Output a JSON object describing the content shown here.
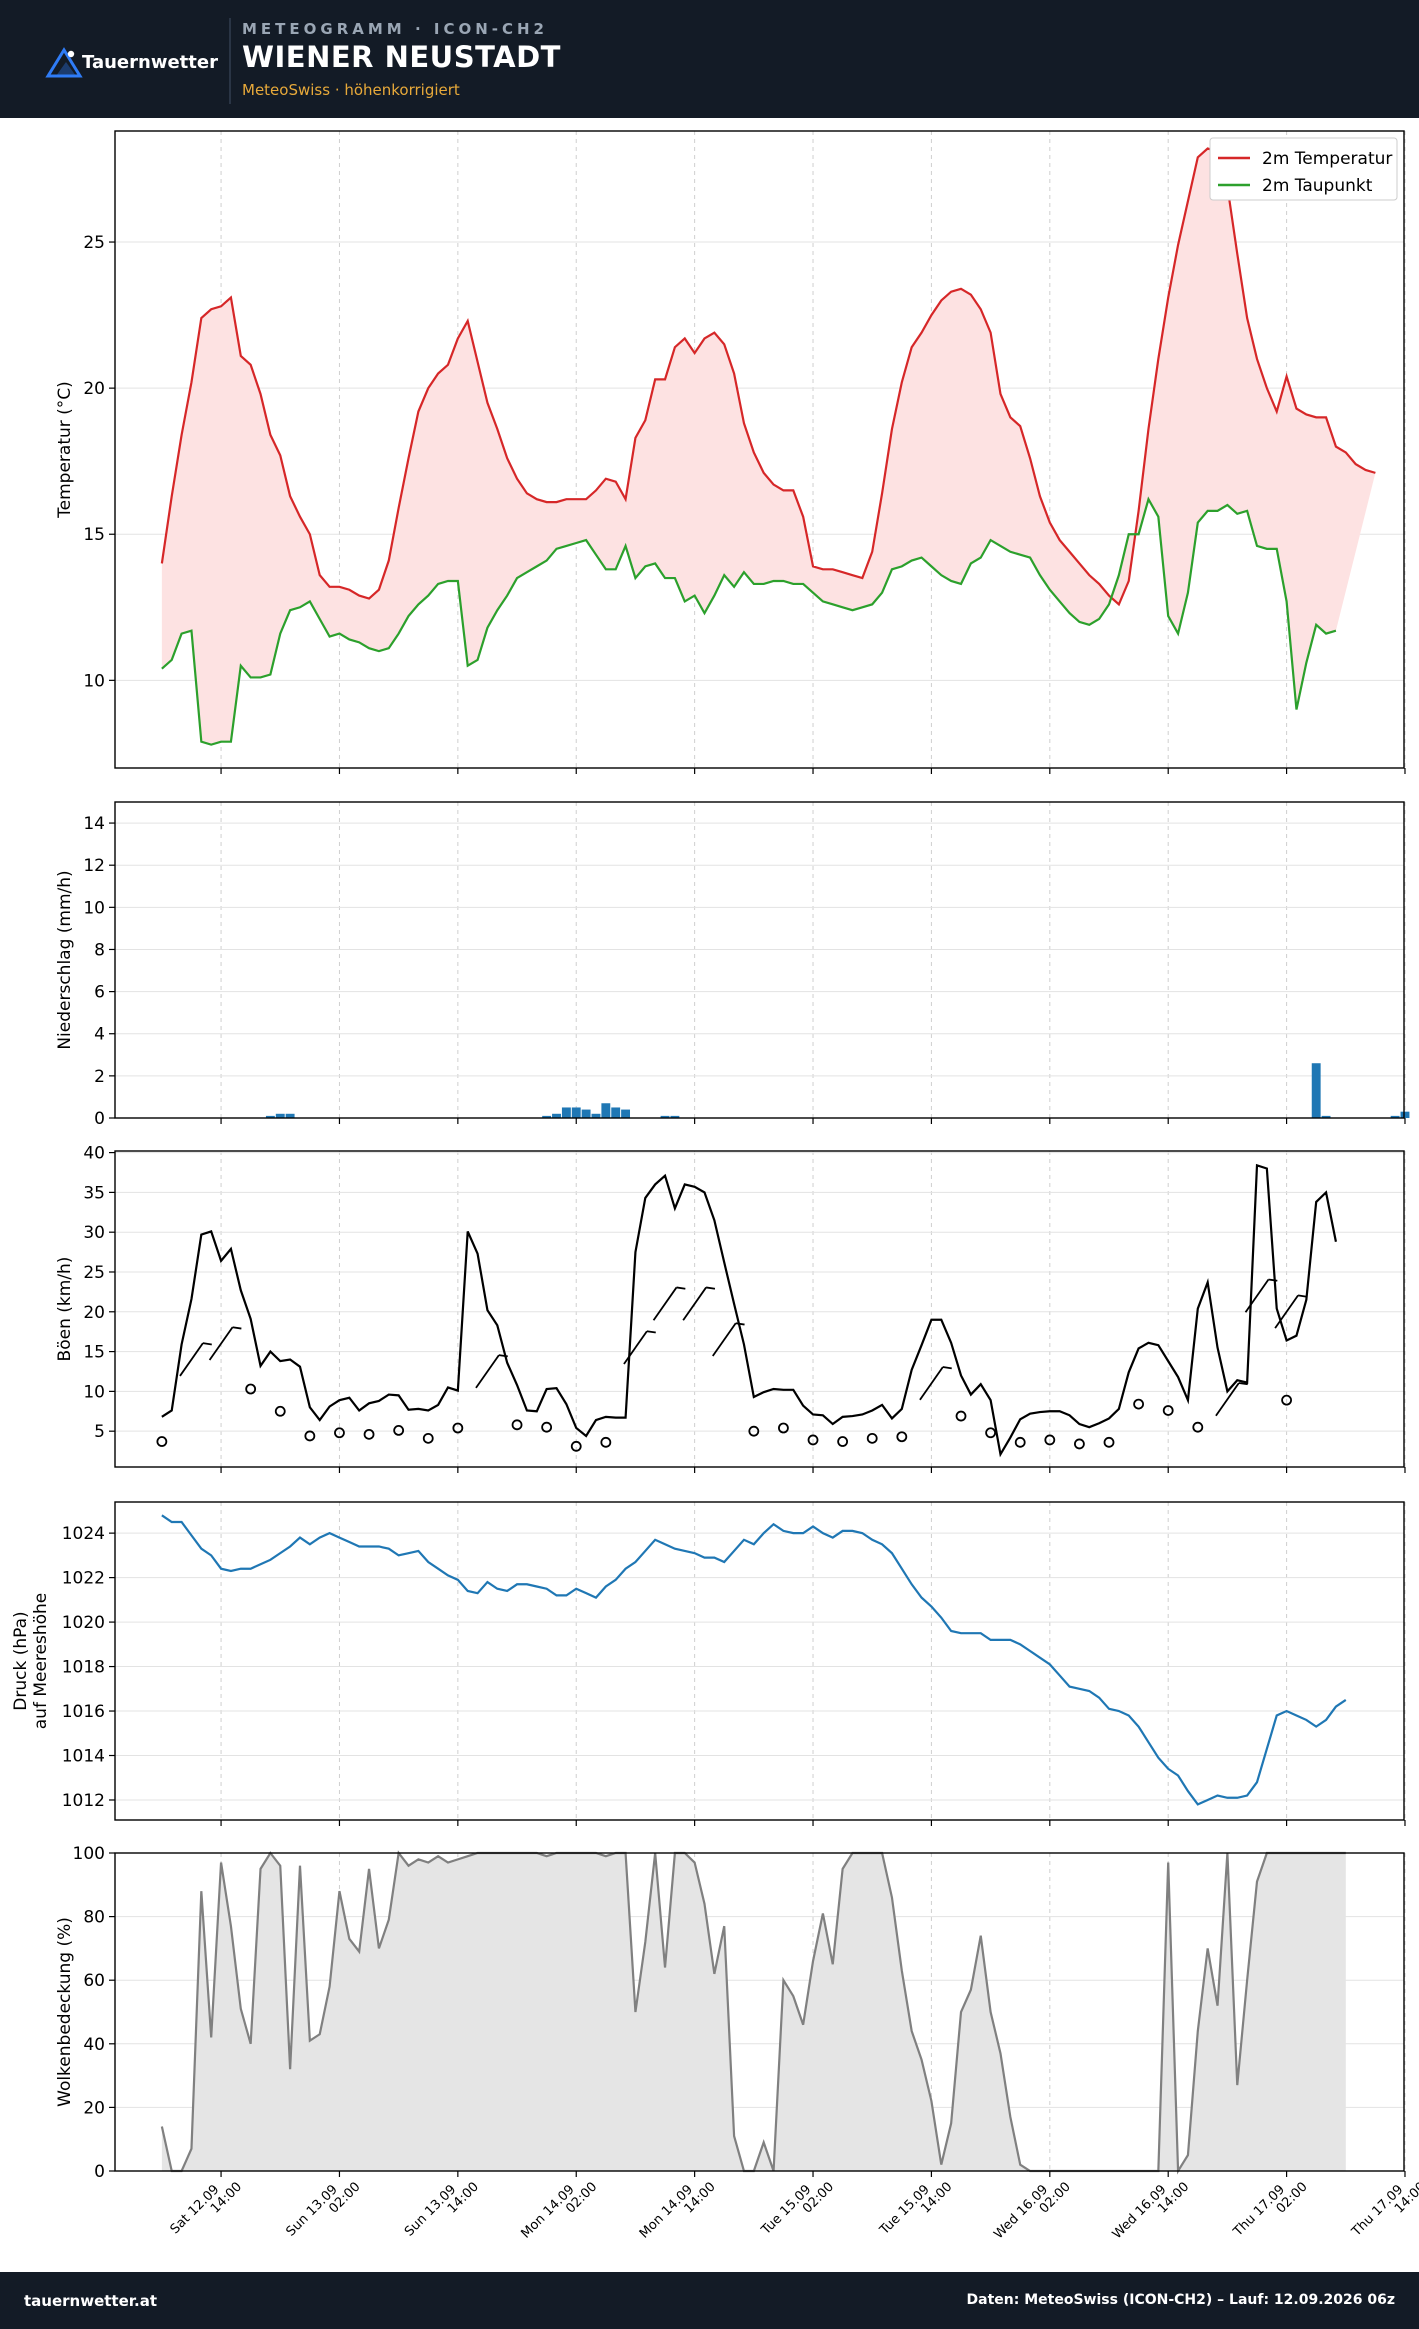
{
  "header": {
    "logo_text": "Tauernwetter",
    "supertitle": "METEOGRAMM · ICON-CH2",
    "title": "WIENER NEUSTADT",
    "subtitle": "MeteoSwiss · höhenkorrigiert"
  },
  "footer": {
    "site": "tauernwetter.at",
    "source": "Daten: MeteoSwiss (ICON-CH2) – Lauf: 12.09.2026 06z"
  },
  "colors": {
    "temperature": "#d62728",
    "dewpoint": "#2ca02c",
    "temp_fill": "#fde2e2",
    "precip": "#1f77b4",
    "gust": "#000000",
    "pressure": "#1f77b4",
    "cloud_line": "#808080",
    "cloud_fill": "#e5e5e5"
  },
  "chart_data": {
    "time_axis": {
      "start": "12.09 08:00",
      "step_hours": 1,
      "tick_labels": [
        [
          "Sat 12.09",
          "14:00"
        ],
        [
          "Sun 13.09",
          "02:00"
        ],
        [
          "Sun 13.09",
          "14:00"
        ],
        [
          "Mon 14.09",
          "02:00"
        ],
        [
          "Mon 14.09",
          "14:00"
        ],
        [
          "Tue 15.09",
          "02:00"
        ],
        [
          "Tue 15.09",
          "14:00"
        ],
        [
          "Wed 16.09",
          "02:00"
        ],
        [
          "Wed 16.09",
          "14:00"
        ],
        [
          "Thu 17.09",
          "02:00"
        ],
        [
          "Thu 17.09",
          "14:00"
        ]
      ],
      "tick_hours": [
        6,
        18,
        30,
        42,
        54,
        66,
        78,
        90,
        102,
        114,
        126
      ]
    },
    "panels": [
      {
        "id": "temperature",
        "type": "line",
        "ylabel": "Temperatur (°C)",
        "ylim": [
          7.0,
          28.8
        ],
        "yticks": [
          10,
          15,
          20,
          25
        ],
        "legend": "top-right",
        "series": [
          {
            "name": "2m Temperatur",
            "start_hour": 0,
            "values": [
              14.0,
              16.3,
              18.4,
              20.2,
              22.4,
              22.7,
              22.8,
              23.1,
              21.1,
              20.8,
              19.8,
              18.4,
              17.7,
              16.3,
              15.6,
              15.0,
              13.6,
              13.2,
              13.2,
              13.1,
              12.9,
              12.8,
              13.1,
              14.1,
              15.9,
              17.6,
              19.2,
              20.0,
              20.5,
              20.8,
              21.7,
              22.3,
              20.9,
              19.5,
              18.6,
              17.6,
              16.9,
              16.4,
              16.2,
              16.1,
              16.1,
              16.2,
              16.2,
              16.2,
              16.5,
              16.9,
              16.8,
              16.2,
              18.3,
              18.9,
              20.3,
              20.3,
              21.4,
              21.7,
              21.2,
              21.7,
              21.9,
              21.5,
              20.5,
              18.8,
              17.8,
              17.1,
              16.7,
              16.5,
              16.5,
              15.6,
              13.9,
              13.8,
              13.8,
              13.7,
              13.6,
              13.5,
              14.4,
              16.4,
              18.6,
              20.2,
              21.4,
              21.9,
              22.5,
              23.0,
              23.3,
              23.4,
              23.2,
              22.7,
              21.9,
              19.8,
              19.0,
              18.7,
              17.6,
              16.3,
              15.4,
              14.8,
              14.4,
              14.0,
              13.6,
              13.3,
              12.9,
              12.6,
              13.4,
              15.8,
              18.6,
              21.0,
              23.1,
              24.9,
              26.4,
              27.9,
              28.2,
              28.1,
              26.9,
              24.6,
              22.4,
              21.0,
              20.0,
              19.2,
              20.4,
              19.3,
              19.1,
              19.0,
              19.0,
              18.0,
              17.8,
              17.4,
              17.2,
              17.1
            ]
          },
          {
            "name": "2m Taupunkt",
            "start_hour": 0,
            "values": [
              10.4,
              10.7,
              11.6,
              11.7,
              7.9,
              7.8,
              7.9,
              7.9,
              10.5,
              10.1,
              10.1,
              10.2,
              11.6,
              12.4,
              12.5,
              12.7,
              12.1,
              11.5,
              11.6,
              11.4,
              11.3,
              11.1,
              11.0,
              11.1,
              11.6,
              12.2,
              12.6,
              12.9,
              13.3,
              13.4,
              13.4,
              10.5,
              10.7,
              11.8,
              12.4,
              12.9,
              13.5,
              13.7,
              13.9,
              14.1,
              14.5,
              14.6,
              14.7,
              14.8,
              14.3,
              13.8,
              13.8,
              14.6,
              13.5,
              13.9,
              14.0,
              13.5,
              13.5,
              12.7,
              12.9,
              12.3,
              12.9,
              13.6,
              13.2,
              13.7,
              13.3,
              13.3,
              13.4,
              13.4,
              13.3,
              13.3,
              13.0,
              12.7,
              12.6,
              12.5,
              12.4,
              12.5,
              12.6,
              13.0,
              13.8,
              13.9,
              14.1,
              14.2,
              13.9,
              13.6,
              13.4,
              13.3,
              14.0,
              14.2,
              14.8,
              14.6,
              14.4,
              14.3,
              14.2,
              13.6,
              13.1,
              12.7,
              12.3,
              12.0,
              11.9,
              12.1,
              12.6,
              13.6,
              15.0,
              15.0,
              16.2,
              15.6,
              12.2,
              11.6,
              13.0,
              15.4,
              15.8,
              15.8,
              16.0,
              15.7,
              15.8,
              14.6,
              14.5,
              14.5,
              12.7,
              9.0,
              10.6,
              11.9,
              11.6,
              11.7
            ]
          }
        ]
      },
      {
        "id": "precipitation",
        "type": "bar",
        "ylabel": "Niederschlag (mm/h)",
        "ylim": [
          0,
          15.0
        ],
        "yticks": [
          0,
          2,
          4,
          6,
          8,
          10,
          12,
          14
        ],
        "series": [
          {
            "name": "",
            "start_hour": 0,
            "values": [
              0,
              0,
              0,
              0,
              0,
              0,
              0,
              0,
              0,
              0,
              0,
              0.1,
              0.2,
              0.2,
              0,
              0,
              0,
              0,
              0,
              0,
              0,
              0,
              0,
              0,
              0,
              0,
              0,
              0,
              0,
              0,
              0,
              0,
              0,
              0,
              0,
              0,
              0,
              0,
              0,
              0.1,
              0.2,
              0.5,
              0.5,
              0.4,
              0.2,
              0.7,
              0.5,
              0.4,
              0,
              0,
              0,
              0.1,
              0.1,
              0,
              0,
              0,
              0,
              0,
              0,
              0,
              0,
              0,
              0,
              0,
              0,
              0,
              0,
              0,
              0,
              0,
              0,
              0,
              0,
              0,
              0,
              0,
              0,
              0,
              0,
              0,
              0,
              0,
              0,
              0,
              0,
              0,
              0,
              0,
              0,
              0,
              0,
              0,
              0,
              0,
              0,
              0,
              0,
              0,
              0,
              0,
              0,
              0,
              0,
              0,
              0,
              0,
              0,
              0,
              0,
              0,
              0,
              0,
              0,
              0,
              0,
              0,
              0,
              2.6,
              0.1,
              0,
              0,
              0,
              0,
              0,
              0,
              0.1,
              0.3
            ]
          }
        ]
      },
      {
        "id": "gusts",
        "type": "line",
        "ylabel": "Böen (km/h)",
        "ylim": [
          0.5,
          40.2
        ],
        "yticks": [
          5,
          10,
          15,
          20,
          25,
          30,
          35,
          40
        ],
        "series": [
          {
            "name": "",
            "start_hour": 0,
            "values": [
              6.8,
              7.6,
              15.9,
              21.6,
              29.7,
              30.1,
              26.4,
              27.9,
              22.7,
              19.1,
              13.2,
              15.0,
              13.8,
              14.0,
              13.1,
              8.0,
              6.4,
              8.1,
              8.9,
              9.2,
              7.6,
              8.5,
              8.8,
              9.6,
              9.5,
              7.7,
              7.8,
              7.6,
              8.3,
              10.5,
              10.1,
              30.1,
              27.3,
              20.2,
              18.3,
              13.6,
              10.8,
              7.6,
              7.5,
              10.3,
              10.4,
              8.4,
              5.4,
              4.4,
              6.4,
              6.8,
              6.7,
              6.7,
              27.5,
              34.3,
              36.0,
              37.1,
              33.0,
              36.0,
              35.7,
              35.0,
              31.5,
              26.2,
              21.0,
              15.9,
              9.3,
              9.9,
              10.3,
              10.2,
              10.2,
              8.2,
              7.1,
              7.0,
              5.9,
              6.8,
              6.9,
              7.1,
              7.6,
              8.3,
              6.6,
              7.8,
              12.7,
              15.8,
              19.0,
              19.0,
              16.1,
              12.0,
              9.6,
              10.9,
              8.9,
              2.1,
              4.2,
              6.5,
              7.2,
              7.4,
              7.5,
              7.5,
              7.0,
              5.9,
              5.5,
              6.0,
              6.6,
              7.8,
              12.4,
              15.4,
              16.1,
              15.8,
              13.8,
              11.8,
              8.9,
              20.4,
              23.7,
              15.5,
              10.0,
              11.4,
              11.1,
              38.4,
              38.0,
              20.4,
              16.4,
              17.0,
              21.5,
              33.8,
              35.0,
              28.8
            ]
          }
        ],
        "wind_markers": {
          "start_hour": 0,
          "step_hours": 3,
          "calm_values": [
            3.7,
            null,
            null,
            10.3,
            7.5,
            4.4,
            4.8,
            4.6,
            5.1,
            4.1,
            5.4,
            null,
            5.8,
            5.5,
            3.1,
            3.6,
            null,
            null,
            null,
            null,
            5.0,
            5.4,
            3.9,
            3.7,
            4.1,
            4.3,
            null,
            6.9,
            4.8,
            3.6,
            3.9,
            3.4,
            3.6,
            8.4,
            7.6,
            5.5,
            null,
            null,
            8.9
          ],
          "barb_values": [
            null,
            14,
            16,
            null,
            null,
            null,
            null,
            null,
            null,
            null,
            null,
            12.5,
            null,
            null,
            null,
            null,
            15.5,
            21,
            21,
            16.5,
            null,
            null,
            null,
            null,
            null,
            null,
            11,
            null,
            null,
            null,
            null,
            null,
            null,
            null,
            null,
            null,
            9,
            22,
            20
          ]
        }
      },
      {
        "id": "pressure",
        "type": "line",
        "ylabel": [
          "Druck (hPa)",
          "auf Meereshöhe"
        ],
        "ylim": [
          1011.1,
          1025.4
        ],
        "yticks": [
          1012,
          1014,
          1016,
          1018,
          1020,
          1022,
          1024
        ],
        "series": [
          {
            "name": "",
            "start_hour": 0,
            "values": [
              1024.8,
              1024.5,
              1024.5,
              1023.9,
              1023.3,
              1023.0,
              1022.4,
              1022.3,
              1022.4,
              1022.4,
              1022.6,
              1022.8,
              1023.1,
              1023.4,
              1023.8,
              1023.5,
              1023.8,
              1024.0,
              1023.8,
              1023.6,
              1023.4,
              1023.4,
              1023.4,
              1023.3,
              1023.0,
              1023.1,
              1023.2,
              1022.7,
              1022.4,
              1022.1,
              1021.9,
              1021.4,
              1021.3,
              1021.8,
              1021.5,
              1021.4,
              1021.7,
              1021.7,
              1021.6,
              1021.5,
              1021.2,
              1021.2,
              1021.5,
              1021.3,
              1021.1,
              1021.6,
              1021.9,
              1022.4,
              1022.7,
              1023.2,
              1023.7,
              1023.5,
              1023.3,
              1023.2,
              1023.1,
              1022.9,
              1022.9,
              1022.7,
              1023.2,
              1023.7,
              1023.5,
              1024.0,
              1024.4,
              1024.1,
              1024.0,
              1024.0,
              1024.3,
              1024.0,
              1023.8,
              1024.1,
              1024.1,
              1024.0,
              1023.7,
              1023.5,
              1023.1,
              1022.4,
              1021.7,
              1021.1,
              1020.7,
              1020.2,
              1019.6,
              1019.5,
              1019.5,
              1019.5,
              1019.2,
              1019.2,
              1019.2,
              1019.0,
              1018.7,
              1018.4,
              1018.1,
              1017.6,
              1017.1,
              1017.0,
              1016.9,
              1016.6,
              1016.1,
              1016.0,
              1015.8,
              1015.3,
              1014.6,
              1013.9,
              1013.4,
              1013.1,
              1012.4,
              1011.8,
              1012.0,
              1012.2,
              1012.1,
              1012.1,
              1012.2,
              1012.8,
              1014.3,
              1015.8,
              1016.0,
              1015.8,
              1015.6,
              1015.3,
              1015.6,
              1016.2,
              1016.5
            ]
          }
        ]
      },
      {
        "id": "clouds",
        "type": "area",
        "ylabel": "Wolkenbedeckung (%)",
        "ylim": [
          0,
          100
        ],
        "yticks": [
          0,
          20,
          40,
          60,
          80,
          100
        ],
        "series": [
          {
            "name": "",
            "start_hour": 0,
            "values": [
              14,
              0,
              0,
              7,
              88,
              42,
              97,
              77,
              51,
              40,
              95,
              100,
              96,
              32,
              96,
              41,
              43,
              58,
              88,
              73,
              69,
              95,
              70,
              79,
              100,
              96,
              98,
              97,
              99,
              97,
              98,
              99,
              100,
              100,
              100,
              100,
              100,
              100,
              100,
              99,
              100,
              100,
              100,
              100,
              100,
              99,
              100,
              100,
              50,
              72,
              100,
              64,
              100,
              100,
              97,
              84,
              62,
              77,
              11,
              0,
              0,
              9,
              0,
              60,
              55,
              46,
              66,
              81,
              65,
              95,
              100,
              100,
              100,
              100,
              86,
              63,
              44,
              35,
              22,
              2,
              15,
              50,
              57,
              74,
              50,
              37,
              17,
              2,
              0,
              0,
              0,
              0,
              0,
              0,
              0,
              0,
              0,
              0,
              0,
              0,
              0,
              0,
              97,
              0,
              5,
              44,
              70,
              52,
              100,
              27,
              60,
              91,
              100,
              100,
              100,
              100,
              100,
              100,
              100,
              100,
              100
            ]
          }
        ]
      }
    ]
  }
}
